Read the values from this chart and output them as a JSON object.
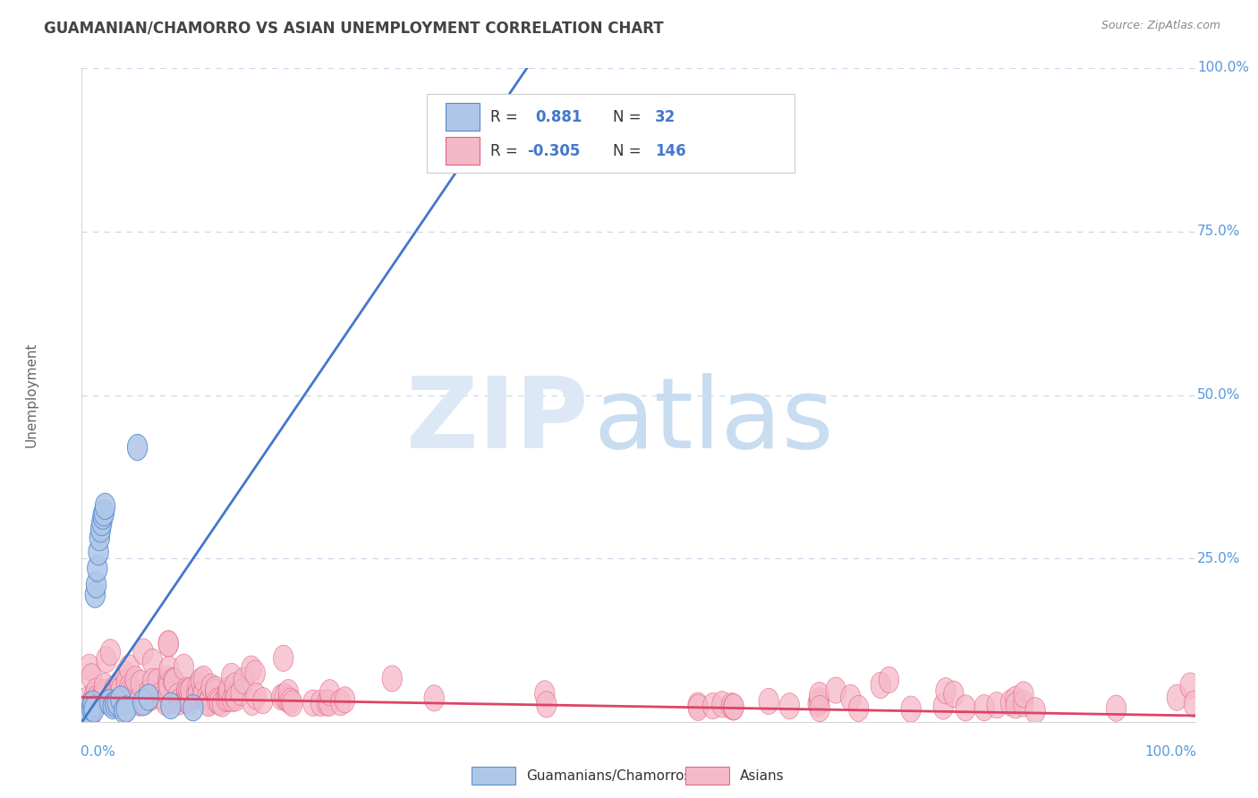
{
  "title": "GUAMANIAN/CHAMORRO VS ASIAN UNEMPLOYMENT CORRELATION CHART",
  "source": "Source: ZipAtlas.com",
  "legend_labels": [
    "Guamanians/Chamorros",
    "Asians"
  ],
  "ylabel": "Unemployment",
  "blue_R": 0.881,
  "blue_N": 32,
  "pink_R": -0.305,
  "pink_N": 146,
  "blue_fill": "#aec6e8",
  "blue_edge": "#5588cc",
  "pink_fill": "#f5b8c8",
  "pink_edge": "#e06080",
  "blue_line_color": "#4477cc",
  "pink_line_color": "#dd4466",
  "background_color": "#ffffff",
  "title_color": "#444444",
  "axis_label_color": "#5599dd",
  "grid_color": "#c8d8ec",
  "source_color": "#888888",
  "ylabel_color": "#666666",
  "legend_R_color": "#333333",
  "legend_val_color": "#4477cc",
  "watermark_zip_color": "#dce8f5",
  "watermark_atlas_color": "#c8ddf0"
}
